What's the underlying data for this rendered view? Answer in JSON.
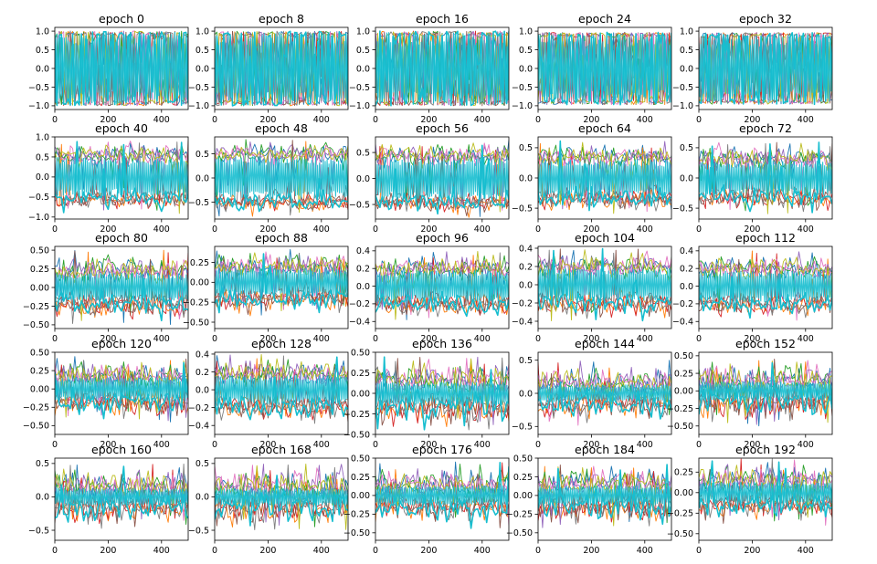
{
  "figure": {
    "description_type": "grid of line plots, 5 rows x 5 columns",
    "series_palette": [
      "#1f77b4",
      "#ff7f0e",
      "#2ca02c",
      "#d62728",
      "#9467bd",
      "#8c564b",
      "#e377c2",
      "#7f7f7f",
      "#bcbd22",
      "#17becf"
    ]
  },
  "chart_data": [
    {
      "type": "line",
      "title": "epoch 0",
      "xlim": [
        0,
        500
      ],
      "ylim": [
        -1.1,
        1.1
      ],
      "xticks": [
        0,
        200,
        400
      ],
      "yticks": [
        -1.0,
        -0.5,
        0.0,
        0.5,
        1.0
      ],
      "ytick_labels": [
        "−1.0",
        "−0.5",
        "0.0",
        "0.5",
        "1.0"
      ],
      "amplitude": 1.0,
      "band": 0.0
    },
    {
      "type": "line",
      "title": "epoch 8",
      "xlim": [
        0,
        500
      ],
      "ylim": [
        -1.1,
        1.1
      ],
      "xticks": [
        0,
        200,
        400
      ],
      "yticks": [
        -1.0,
        -0.5,
        0.0,
        0.5,
        1.0
      ],
      "ytick_labels": [
        "−1.0",
        "−0.5",
        "0.0",
        "0.5",
        "1.0"
      ],
      "amplitude": 1.0,
      "band": 0.0
    },
    {
      "type": "line",
      "title": "epoch 16",
      "xlim": [
        0,
        500
      ],
      "ylim": [
        -1.1,
        1.1
      ],
      "xticks": [
        0,
        200,
        400
      ],
      "yticks": [
        -1.0,
        -0.5,
        0.0,
        0.5,
        1.0
      ],
      "ytick_labels": [
        "−1.0",
        "−0.5",
        "0.0",
        "0.5",
        "1.0"
      ],
      "amplitude": 1.0,
      "band": 0.0
    },
    {
      "type": "line",
      "title": "epoch 24",
      "xlim": [
        0,
        500
      ],
      "ylim": [
        -1.1,
        1.1
      ],
      "xticks": [
        0,
        200,
        400
      ],
      "yticks": [
        -1.0,
        -0.5,
        0.0,
        0.5,
        1.0
      ],
      "ytick_labels": [
        "−1.0",
        "−0.5",
        "0.0",
        "0.5",
        "1.0"
      ],
      "amplitude": 0.97,
      "band": 0.0
    },
    {
      "type": "line",
      "title": "epoch 32",
      "xlim": [
        0,
        500
      ],
      "ylim": [
        -1.1,
        1.1
      ],
      "xticks": [
        0,
        200,
        400
      ],
      "yticks": [
        -1.0,
        -0.5,
        0.0,
        0.5,
        1.0
      ],
      "ytick_labels": [
        "−1.0",
        "−0.5",
        "0.0",
        "0.5",
        "1.0"
      ],
      "amplitude": 0.96,
      "band": 0.0
    },
    {
      "type": "line",
      "title": "epoch 40",
      "xlim": [
        0,
        500
      ],
      "ylim": [
        -1.05,
        1.0
      ],
      "xticks": [
        0,
        200,
        400
      ],
      "yticks": [
        -1.0,
        -0.5,
        0.0,
        0.5,
        1.0
      ],
      "ytick_labels": [
        "−1.0",
        "−0.5",
        "0.0",
        "0.5",
        "1.0"
      ],
      "amplitude": 0.92,
      "band": 0.55
    },
    {
      "type": "line",
      "title": "epoch 48",
      "xlim": [
        0,
        500
      ],
      "ylim": [
        -0.85,
        0.85
      ],
      "xticks": [
        0,
        200,
        400
      ],
      "yticks": [
        -0.5,
        0.0,
        0.5
      ],
      "ytick_labels": [
        "−0.5",
        "0.0",
        "0.5"
      ],
      "amplitude": 0.8,
      "band": 0.5
    },
    {
      "type": "line",
      "title": "epoch 56",
      "xlim": [
        0,
        500
      ],
      "ylim": [
        -0.78,
        0.8
      ],
      "xticks": [
        0,
        200,
        400
      ],
      "yticks": [
        -0.5,
        0.0,
        0.5
      ],
      "ytick_labels": [
        "−0.5",
        "0.0",
        "0.5"
      ],
      "amplitude": 0.75,
      "band": 0.45
    },
    {
      "type": "line",
      "title": "epoch 64",
      "xlim": [
        0,
        500
      ],
      "ylim": [
        -0.68,
        0.68
      ],
      "xticks": [
        0,
        200,
        400
      ],
      "yticks": [
        -0.5,
        0.0,
        0.5
      ],
      "ytick_labels": [
        "−0.5",
        "0.0",
        "0.5"
      ],
      "amplitude": 0.62,
      "band": 0.35
    },
    {
      "type": "line",
      "title": "epoch 72",
      "xlim": [
        0,
        500
      ],
      "ylim": [
        -0.68,
        0.68
      ],
      "xticks": [
        0,
        200,
        400
      ],
      "yticks": [
        -0.5,
        0.0,
        0.5
      ],
      "ytick_labels": [
        "−0.5",
        "0.0",
        "0.5"
      ],
      "amplitude": 0.6,
      "band": 0.32
    },
    {
      "type": "line",
      "title": "epoch 80",
      "xlim": [
        0,
        500
      ],
      "ylim": [
        -0.55,
        0.55
      ],
      "xticks": [
        0,
        200,
        400
      ],
      "yticks": [
        -0.5,
        -0.25,
        0.0,
        0.25,
        0.5
      ],
      "ytick_labels": [
        "−0.50",
        "−0.25",
        "0.00",
        "0.25",
        "0.50"
      ],
      "amplitude": 0.5,
      "band": 0.22
    },
    {
      "type": "line",
      "title": "epoch 88",
      "xlim": [
        0,
        500
      ],
      "ylim": [
        -0.58,
        0.45
      ],
      "xticks": [
        0,
        200,
        400
      ],
      "yticks": [
        -0.5,
        -0.25,
        0.0,
        0.25
      ],
      "ytick_labels": [
        "−0.50",
        "−0.25",
        "0.00",
        "0.25"
      ],
      "amplitude": 0.42,
      "band": 0.2
    },
    {
      "type": "line",
      "title": "epoch 96",
      "xlim": [
        0,
        500
      ],
      "ylim": [
        -0.48,
        0.45
      ],
      "xticks": [
        0,
        200,
        400
      ],
      "yticks": [
        -0.4,
        -0.2,
        0.0,
        0.2,
        0.4
      ],
      "ytick_labels": [
        "−0.4",
        "−0.2",
        "0.0",
        "0.2",
        "0.4"
      ],
      "amplitude": 0.4,
      "band": 0.2
    },
    {
      "type": "line",
      "title": "epoch 104",
      "xlim": [
        0,
        500
      ],
      "ylim": [
        -0.48,
        0.42
      ],
      "xticks": [
        0,
        200,
        400
      ],
      "yticks": [
        -0.4,
        -0.2,
        0.0,
        0.2,
        0.4
      ],
      "ytick_labels": [
        "−0.4",
        "−0.2",
        "0.0",
        "0.2",
        "0.4"
      ],
      "amplitude": 0.4,
      "band": 0.2
    },
    {
      "type": "line",
      "title": "epoch 112",
      "xlim": [
        0,
        500
      ],
      "ylim": [
        -0.48,
        0.45
      ],
      "xticks": [
        0,
        200,
        400
      ],
      "yticks": [
        -0.4,
        -0.2,
        0.0,
        0.2,
        0.4
      ],
      "ytick_labels": [
        "−0.4",
        "−0.2",
        "0.0",
        "0.2",
        "0.4"
      ],
      "amplitude": 0.4,
      "band": 0.2
    },
    {
      "type": "line",
      "title": "epoch 120",
      "xlim": [
        0,
        500
      ],
      "ylim": [
        -0.62,
        0.5
      ],
      "xticks": [
        0,
        200,
        400
      ],
      "yticks": [
        -0.5,
        -0.25,
        0.0,
        0.25,
        0.5
      ],
      "ytick_labels": [
        "−0.50",
        "−0.25",
        "0.00",
        "0.25",
        "0.50"
      ],
      "amplitude": 0.45,
      "band": 0.18
    },
    {
      "type": "line",
      "title": "epoch 128",
      "xlim": [
        0,
        500
      ],
      "ylim": [
        -0.5,
        0.42
      ],
      "xticks": [
        0,
        200,
        400
      ],
      "yticks": [
        -0.4,
        -0.2,
        0.0,
        0.2,
        0.4
      ],
      "ytick_labels": [
        "−0.4",
        "−0.2",
        "0.0",
        "0.2",
        "0.4"
      ],
      "amplitude": 0.4,
      "band": 0.18
    },
    {
      "type": "line",
      "title": "epoch 136",
      "xlim": [
        0,
        500
      ],
      "ylim": [
        -0.5,
        0.5
      ],
      "xticks": [
        0,
        200,
        400
      ],
      "yticks": [
        -0.5,
        -0.25,
        0.0,
        0.25,
        0.5
      ],
      "ytick_labels": [
        "−0.50",
        "−0.25",
        "0.00",
        "0.25",
        "0.50"
      ],
      "amplitude": 0.45,
      "band": 0.16
    },
    {
      "type": "line",
      "title": "epoch 144",
      "xlim": [
        0,
        500
      ],
      "ylim": [
        -0.62,
        0.62
      ],
      "xticks": [
        0,
        200,
        400
      ],
      "yticks": [
        -0.5,
        0.0,
        0.5
      ],
      "ytick_labels": [
        "−0.5",
        "0.0",
        "0.5"
      ],
      "amplitude": 0.5,
      "band": 0.15
    },
    {
      "type": "line",
      "title": "epoch 152",
      "xlim": [
        0,
        500
      ],
      "ylim": [
        -0.62,
        0.55
      ],
      "xticks": [
        0,
        200,
        400
      ],
      "yticks": [
        -0.5,
        -0.25,
        0.0,
        0.25,
        0.5
      ],
      "ytick_labels": [
        "−0.50",
        "−0.25",
        "0.00",
        "0.25",
        "0.50"
      ],
      "amplitude": 0.5,
      "band": 0.15
    },
    {
      "type": "line",
      "title": "epoch 160",
      "xlim": [
        0,
        500
      ],
      "ylim": [
        -0.65,
        0.58
      ],
      "xticks": [
        0,
        200,
        400
      ],
      "yticks": [
        -0.5,
        0.0,
        0.5
      ],
      "ytick_labels": [
        "−0.5",
        "0.0",
        "0.5"
      ],
      "amplitude": 0.5,
      "band": 0.15
    },
    {
      "type": "line",
      "title": "epoch 168",
      "xlim": [
        0,
        500
      ],
      "ylim": [
        -0.65,
        0.58
      ],
      "xticks": [
        0,
        200,
        400
      ],
      "yticks": [
        -0.5,
        0.0,
        0.5
      ],
      "ytick_labels": [
        "−0.5",
        "0.0",
        "0.5"
      ],
      "amplitude": 0.5,
      "band": 0.15
    },
    {
      "type": "line",
      "title": "epoch 176",
      "xlim": [
        0,
        500
      ],
      "ylim": [
        -0.6,
        0.5
      ],
      "xticks": [
        0,
        200,
        400
      ],
      "yticks": [
        -0.5,
        -0.25,
        0.0,
        0.25,
        0.5
      ],
      "ytick_labels": [
        "−0.50",
        "−0.25",
        "0.00",
        "0.25",
        "0.50"
      ],
      "amplitude": 0.45,
      "band": 0.15
    },
    {
      "type": "line",
      "title": "epoch 184",
      "xlim": [
        0,
        500
      ],
      "ylim": [
        -0.6,
        0.5
      ],
      "xticks": [
        0,
        200,
        400
      ],
      "yticks": [
        -0.5,
        -0.25,
        0.0,
        0.25,
        0.5
      ],
      "ytick_labels": [
        "−0.50",
        "−0.25",
        "0.00",
        "0.25",
        "0.50"
      ],
      "amplitude": 0.45,
      "band": 0.15
    },
    {
      "type": "line",
      "title": "epoch 192",
      "xlim": [
        0,
        500
      ],
      "ylim": [
        -0.58,
        0.42
      ],
      "xticks": [
        0,
        200,
        400
      ],
      "yticks": [
        -0.5,
        -0.25,
        0.0,
        0.25
      ],
      "ytick_labels": [
        "−0.50",
        "−0.25",
        "0.00",
        "0.25"
      ],
      "amplitude": 0.42,
      "band": 0.15
    }
  ]
}
